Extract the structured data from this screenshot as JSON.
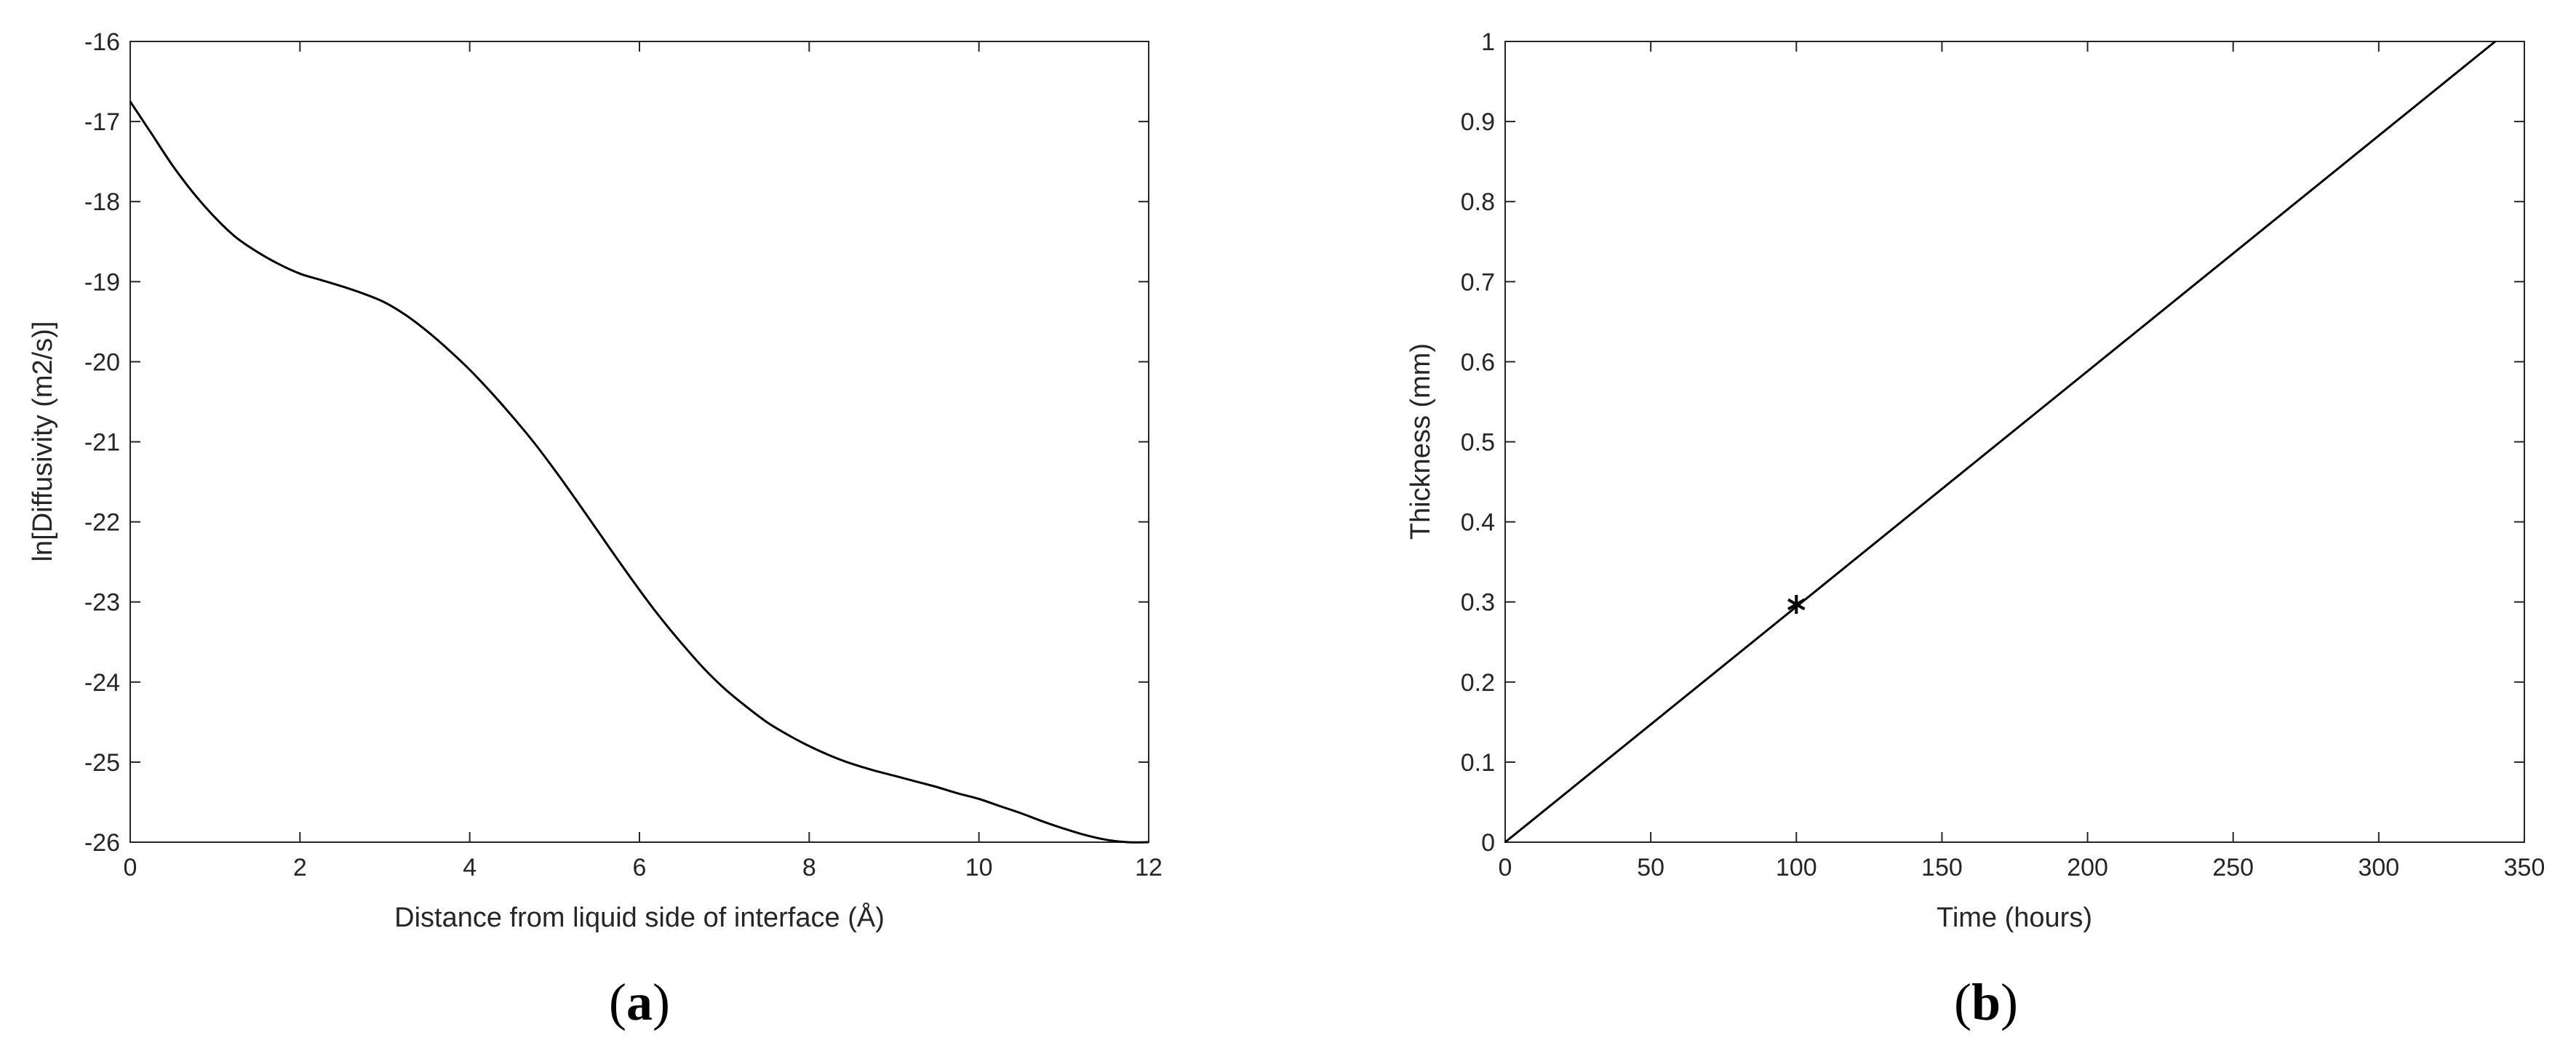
{
  "chart_data": [
    {
      "panel_label": {
        "open": "(",
        "letter": "a",
        "close": ")"
      },
      "type": "line",
      "title": "",
      "xlabel": "Distance from liquid side of interface (Å)",
      "ylabel": "ln[Diffusivity (m2/s)]",
      "xlim": [
        0,
        12
      ],
      "ylim": [
        -26,
        -16
      ],
      "xticks": [
        "0",
        "2",
        "4",
        "6",
        "8",
        "10",
        "12"
      ],
      "yticks": [
        "-16",
        "-17",
        "-18",
        "-19",
        "-20",
        "-21",
        "-22",
        "-23",
        "-24",
        "-25",
        "-26"
      ],
      "grid": false,
      "series": [
        {
          "color": "#000000",
          "x": [
            0,
            0.25,
            0.5,
            0.75,
            1.0,
            1.25,
            1.5,
            1.75,
            2.0,
            2.25,
            2.5,
            2.75,
            3.0,
            3.25,
            3.5,
            3.75,
            4.0,
            4.25,
            4.5,
            4.75,
            5.0,
            5.25,
            5.5,
            5.75,
            6.0,
            6.25,
            6.5,
            6.75,
            7.0,
            7.25,
            7.5,
            7.75,
            8.0,
            8.25,
            8.5,
            8.75,
            9.0,
            9.25,
            9.5,
            9.75,
            10.0,
            10.25,
            10.5,
            10.75,
            11.0,
            11.25,
            11.5,
            11.75,
            12.0
          ],
          "y": [
            -16.75,
            -17.15,
            -17.55,
            -17.9,
            -18.2,
            -18.45,
            -18.63,
            -18.78,
            -18.9,
            -18.98,
            -19.06,
            -19.15,
            -19.26,
            -19.42,
            -19.62,
            -19.85,
            -20.1,
            -20.38,
            -20.68,
            -21.0,
            -21.35,
            -21.72,
            -22.1,
            -22.48,
            -22.85,
            -23.2,
            -23.52,
            -23.82,
            -24.08,
            -24.3,
            -24.5,
            -24.66,
            -24.8,
            -24.92,
            -25.02,
            -25.1,
            -25.17,
            -25.24,
            -25.31,
            -25.39,
            -25.46,
            -25.55,
            -25.64,
            -25.74,
            -25.83,
            -25.91,
            -25.97,
            -26.0,
            -26.0
          ]
        }
      ]
    },
    {
      "panel_label": {
        "open": "(",
        "letter": "b",
        "close": ")"
      },
      "type": "line",
      "title": "",
      "xlabel": "Time (hours)",
      "ylabel": "Thickness (mm)",
      "xlim": [
        0,
        350
      ],
      "ylim": [
        0,
        1
      ],
      "xticks": [
        "0",
        "50",
        "100",
        "150",
        "200",
        "250",
        "300",
        "350"
      ],
      "yticks": [
        "0",
        "0.1",
        "0.2",
        "0.3",
        "0.4",
        "0.5",
        "0.6",
        "0.7",
        "0.8",
        "0.9",
        "1"
      ],
      "grid": false,
      "series": [
        {
          "color": "#000000",
          "x": [
            0,
            340
          ],
          "y": [
            0,
            1.0
          ]
        }
      ],
      "markers": [
        {
          "symbol": "*",
          "x": 100,
          "y": 0.297
        }
      ]
    }
  ]
}
